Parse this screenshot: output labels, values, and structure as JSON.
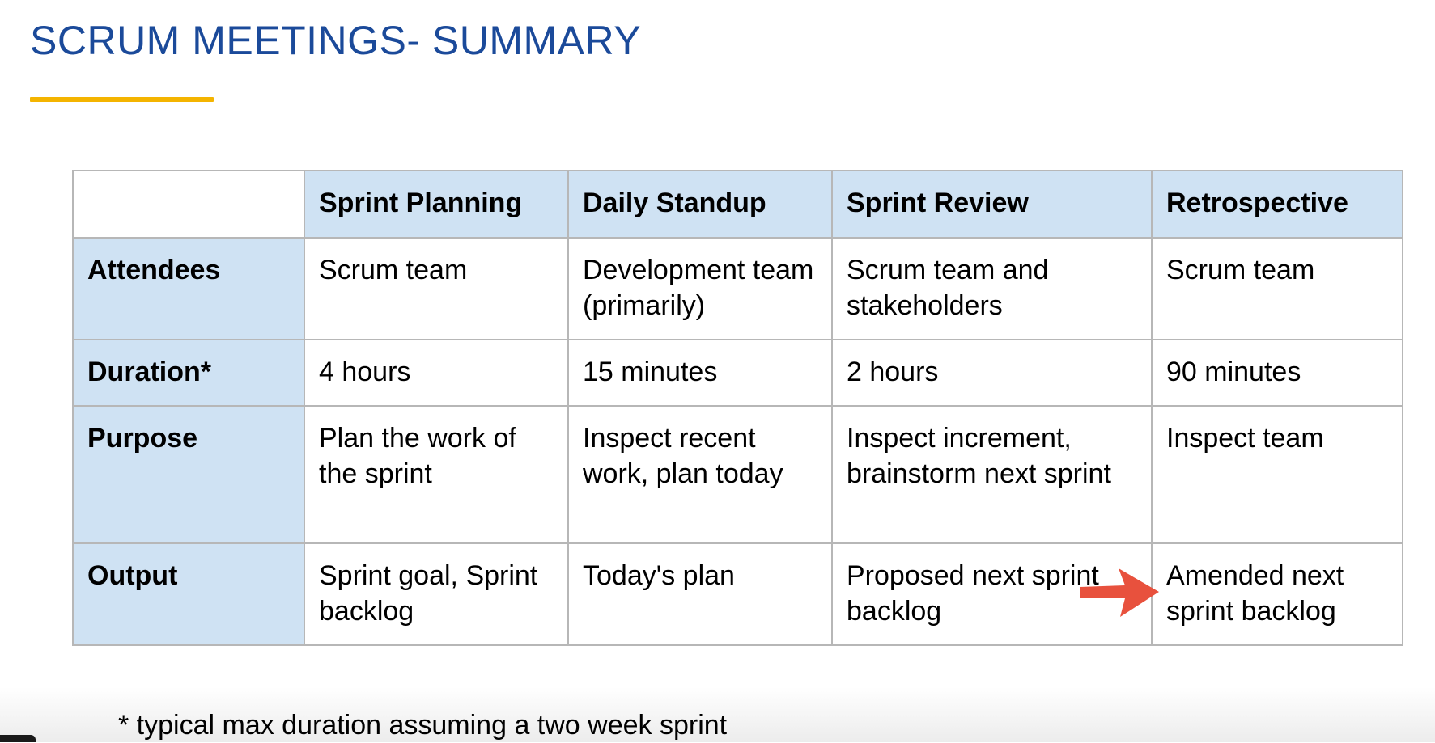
{
  "slide": {
    "title": "SCRUM MEETINGS- SUMMARY",
    "footnote": "* typical max duration assuming a two week sprint"
  },
  "table": {
    "columns": [
      "Sprint Planning",
      "Daily Standup",
      "Sprint Review",
      "Retrospective"
    ],
    "rows": [
      {
        "label": "Attendees",
        "cells": [
          "Scrum team",
          "Development team (primarily)",
          "Scrum team and stakeholders",
          "Scrum team"
        ]
      },
      {
        "label": "Duration*",
        "cells": [
          "4 hours",
          "15 minutes",
          "2 hours",
          "90 minutes"
        ]
      },
      {
        "label": "Purpose",
        "cells": [
          "Plan the work of the sprint",
          "Inspect recent work, plan today",
          "Inspect increment, brainstorm next sprint",
          "Inspect team"
        ]
      },
      {
        "label": "Output",
        "cells": [
          "Sprint goal, Sprint backlog",
          "Today's plan",
          "Proposed next sprint backlog",
          "Amended next sprint backlog"
        ]
      }
    ]
  },
  "colors": {
    "title": "#1b4a9a",
    "underline": "#f4b400",
    "header_fill": "#cfe2f3",
    "grid": "#b7b7b7",
    "arrow": "#e8513d"
  },
  "icons": {
    "annotation": "arrow-right-icon"
  }
}
